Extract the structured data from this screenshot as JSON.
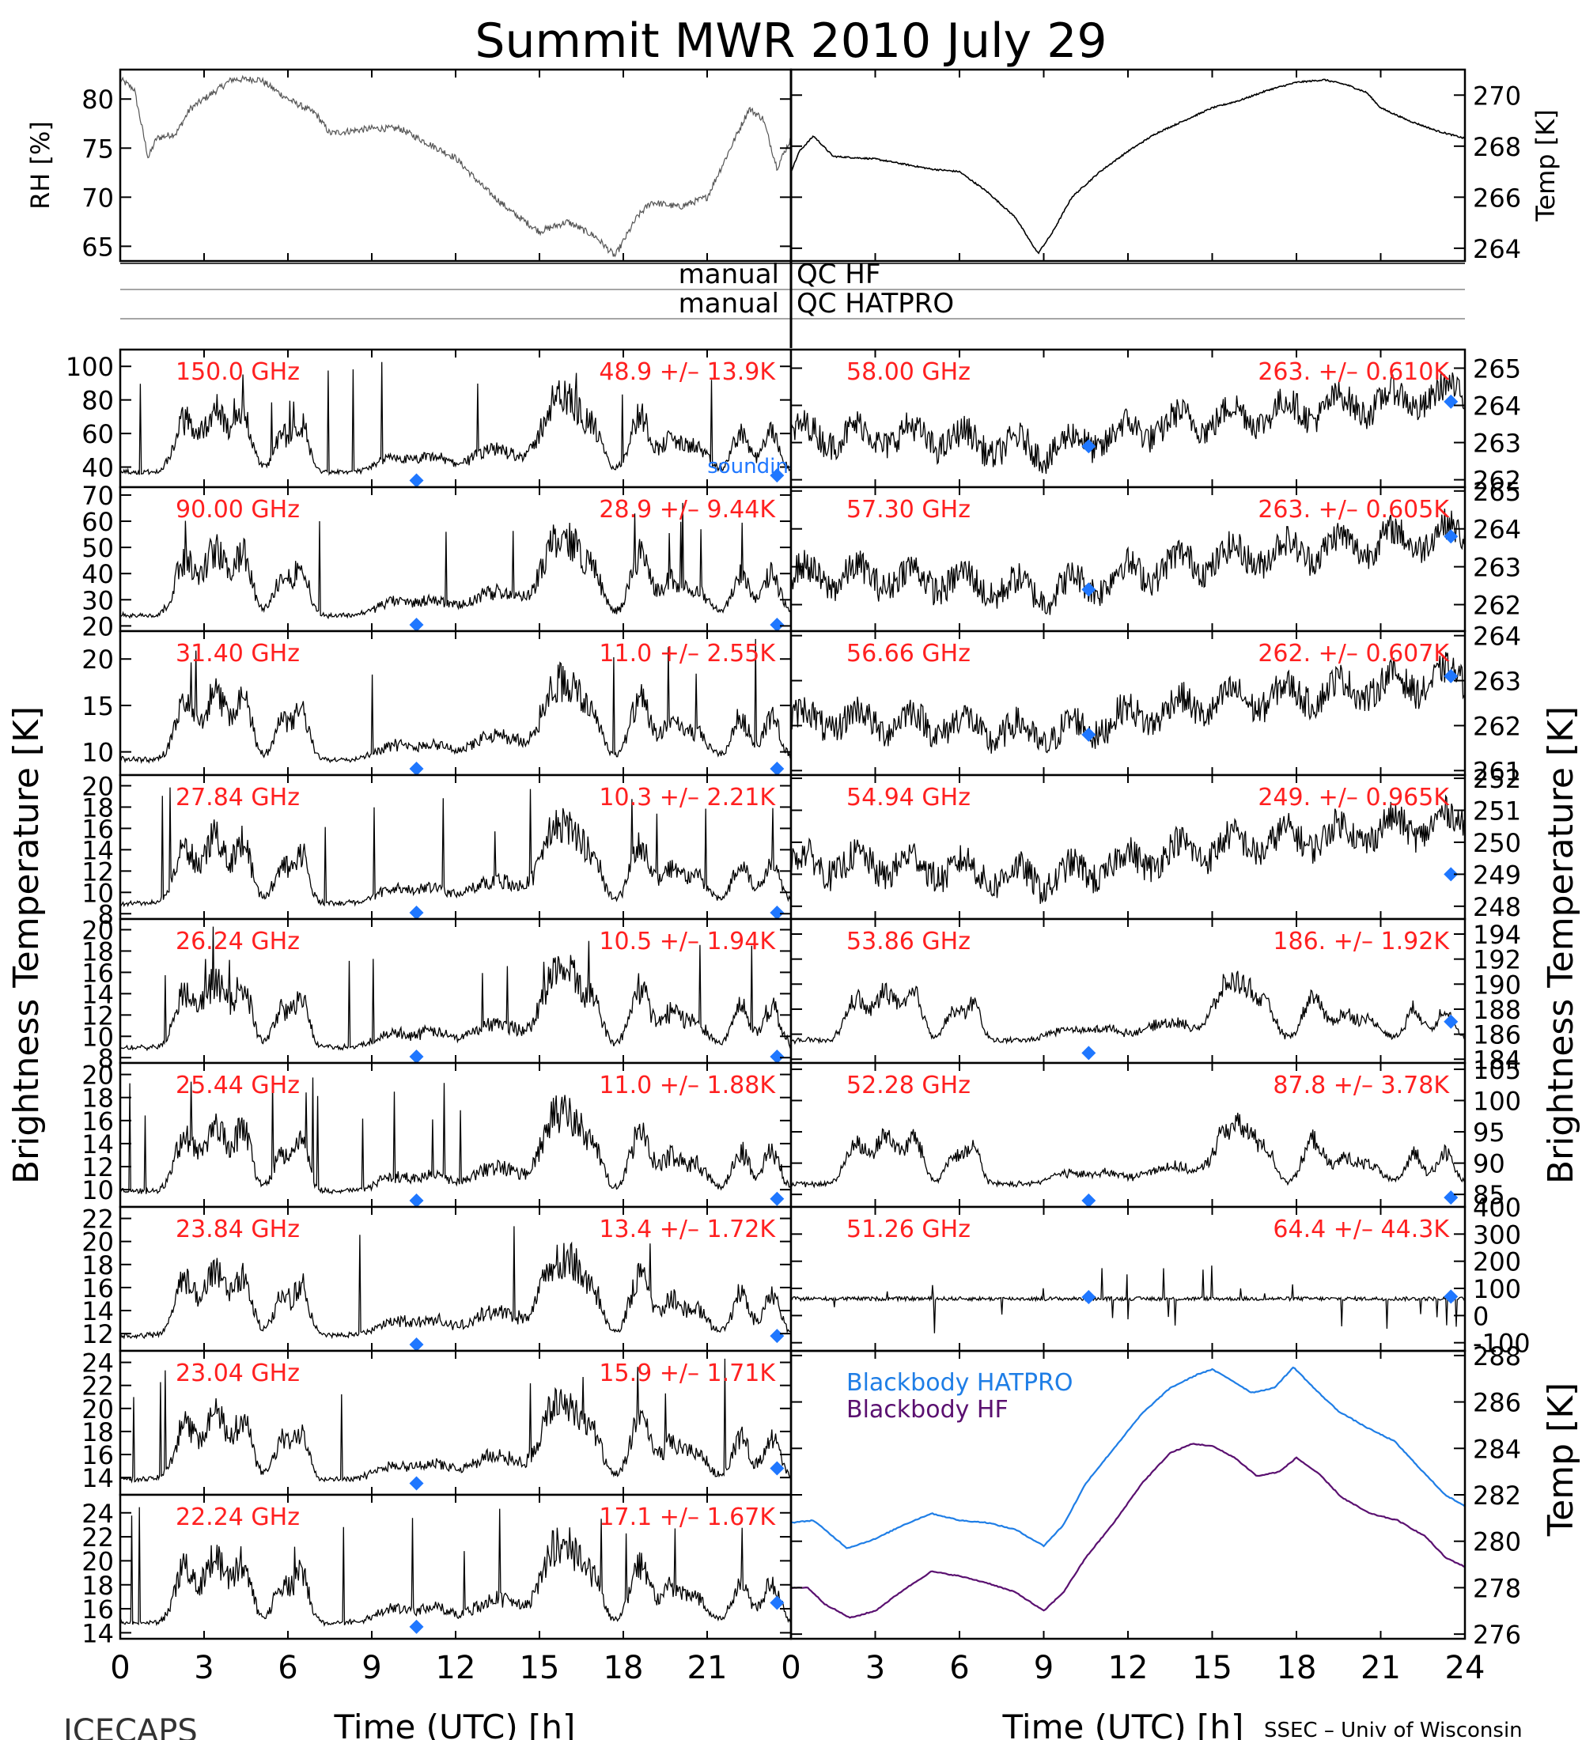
{
  "title": "Summit MWR 2010 July 29",
  "footer": {
    "left": "ICECAPS",
    "right": "SSEC – Univ of Wisconsin"
  },
  "qc_labels": [
    {
      "left": "manual",
      "right": "QC HF"
    },
    {
      "left": "manual",
      "right": "QC HATPRO"
    }
  ],
  "axis_labels": {
    "left_bt": "Brightness Temperature [K]",
    "right_bt": "Brightness Temperature [K]",
    "bb_temp": "Temp [K]",
    "xlabel": "Time (UTC) [h]"
  },
  "colors": {
    "annotation_red": "#ff2020",
    "marker_blue": "#1f77ff",
    "hatpro_blue": "#1f7ee6",
    "hf_purple": "#5a1070",
    "trace_black": "#000000"
  },
  "chart_data": [
    {
      "type": "line",
      "id": "top-left",
      "ylabel": "RH [%]",
      "ylim": [
        63.5,
        83
      ],
      "yticks": [
        65,
        70,
        75,
        80
      ],
      "xlim": [
        0,
        24
      ],
      "xticks": [
        0,
        3,
        6,
        9,
        12,
        15,
        18,
        21
      ],
      "series": [
        {
          "knots": [
            [
              0,
              82
            ],
            [
              0.5,
              81
            ],
            [
              1,
              74
            ],
            [
              1.3,
              76
            ],
            [
              2,
              76.5
            ],
            [
              2.5,
              79
            ],
            [
              3,
              80
            ],
            [
              4,
              82
            ],
            [
              5,
              82
            ],
            [
              6,
              80
            ],
            [
              7,
              78.5
            ],
            [
              7.5,
              76.5
            ],
            [
              9,
              77
            ],
            [
              10,
              77
            ],
            [
              11,
              75.5
            ],
            [
              12,
              74
            ],
            [
              13,
              71
            ],
            [
              14,
              68.5
            ],
            [
              15,
              66.5
            ],
            [
              16,
              67.5
            ],
            [
              17,
              66
            ],
            [
              17.7,
              64
            ],
            [
              18.5,
              68
            ],
            [
              19,
              69.5
            ],
            [
              20,
              69
            ],
            [
              21,
              70
            ],
            [
              22,
              76
            ],
            [
              22.5,
              79
            ],
            [
              23,
              78
            ],
            [
              23.5,
              73
            ],
            [
              24,
              76
            ]
          ]
        }
      ]
    },
    {
      "type": "line",
      "id": "top-right",
      "ylabel": "Temp [K]",
      "ylim": [
        263.5,
        271
      ],
      "yticks": [
        264,
        266,
        268,
        270
      ],
      "xlim": [
        0,
        24
      ],
      "series": [
        {
          "knots": [
            [
              0,
              267
            ],
            [
              0.3,
              267.8
            ],
            [
              0.8,
              268.4
            ],
            [
              1.5,
              267.6
            ],
            [
              3,
              267.5
            ],
            [
              4,
              267.3
            ],
            [
              5,
              267.1
            ],
            [
              6,
              267
            ],
            [
              7,
              266.2
            ],
            [
              8,
              265.2
            ],
            [
              8.5,
              264.3
            ],
            [
              8.8,
              263.8
            ],
            [
              9.3,
              264.6
            ],
            [
              10,
              266
            ],
            [
              11,
              267
            ],
            [
              12,
              267.8
            ],
            [
              13,
              268.5
            ],
            [
              14,
              269
            ],
            [
              15,
              269.5
            ],
            [
              16,
              269.8
            ],
            [
              17,
              270.2
            ],
            [
              18,
              270.5
            ],
            [
              19,
              270.6
            ],
            [
              19.8,
              270.4
            ],
            [
              20.5,
              270.1
            ],
            [
              21,
              269.5
            ],
            [
              22,
              269
            ],
            [
              23,
              268.6
            ],
            [
              24,
              268.3
            ]
          ]
        }
      ]
    },
    {
      "type": "line",
      "id": "bt-150.0",
      "freq_label": "150.0 GHz",
      "stat_label": "48.9 +/– 13.9K",
      "ylim": [
        28,
        110
      ],
      "yticks": [
        40,
        60,
        80,
        100
      ],
      "model_points": [
        [
          10.6,
          32
        ],
        [
          23.5,
          35
        ]
      ],
      "extra_label": "sounding (monoRTM)"
    },
    {
      "type": "line",
      "id": "bt-90.00",
      "freq_label": "90.00 GHz",
      "stat_label": "28.9 +/– 9.44K",
      "ylim": [
        18,
        73
      ],
      "yticks": [
        20,
        30,
        40,
        50,
        60,
        70
      ],
      "model_points": [
        [
          10.6,
          18
        ],
        [
          23.5,
          19
        ]
      ]
    },
    {
      "type": "line",
      "id": "bt-31.40",
      "freq_label": "31.40 GHz",
      "stat_label": "11.0 +/– 2.55K",
      "ylim": [
        7.5,
        23
      ],
      "yticks": [
        10,
        15,
        20
      ],
      "model_points": [
        [
          10.6,
          8
        ],
        [
          23.5,
          8
        ]
      ]
    },
    {
      "type": "line",
      "id": "bt-27.84",
      "freq_label": "27.84 GHz",
      "stat_label": "10.3 +/– 2.21K",
      "ylim": [
        7.5,
        21
      ],
      "yticks": [
        8,
        10,
        12,
        14,
        16,
        18,
        20
      ],
      "model_points": [
        [
          10.6,
          8
        ],
        [
          23.5,
          8
        ]
      ]
    },
    {
      "type": "line",
      "id": "bt-26.24",
      "freq_label": "26.24 GHz",
      "stat_label": "10.5 +/– 1.94K",
      "ylim": [
        7.5,
        21
      ],
      "yticks": [
        8,
        10,
        12,
        14,
        16,
        18,
        20
      ],
      "model_points": [
        [
          10.6,
          7.8
        ],
        [
          23.5,
          7.8
        ]
      ]
    },
    {
      "type": "line",
      "id": "bt-25.44",
      "freq_label": "25.44 GHz",
      "stat_label": "11.0 +/– 1.88K",
      "ylim": [
        8.5,
        21
      ],
      "yticks": [
        10,
        12,
        14,
        16,
        18,
        20
      ],
      "model_points": [
        [
          10.6,
          9
        ],
        [
          23.5,
          9.2
        ]
      ]
    },
    {
      "type": "line",
      "id": "bt-23.84",
      "freq_label": "23.84 GHz",
      "stat_label": "13.4 +/– 1.72K",
      "ylim": [
        10.5,
        23
      ],
      "yticks": [
        12,
        14,
        16,
        18,
        20,
        22
      ],
      "model_points": [
        [
          10.6,
          10.7
        ],
        [
          23.5,
          11.8
        ]
      ]
    },
    {
      "type": "line",
      "id": "bt-23.04",
      "freq_label": "23.04 GHz",
      "stat_label": "15.9 +/– 1.71K",
      "ylim": [
        12.5,
        25
      ],
      "yticks": [
        14,
        16,
        18,
        20,
        22,
        24
      ],
      "model_points": [
        [
          10.6,
          13.5
        ],
        [
          23.5,
          14.8
        ]
      ]
    },
    {
      "type": "line",
      "id": "bt-22.24",
      "freq_label": "22.24 GHz",
      "stat_label": "17.1 +/– 1.67K",
      "ylim": [
        13.5,
        25.5
      ],
      "yticks": [
        14,
        16,
        18,
        20,
        22,
        24
      ],
      "model_points": [
        [
          10.6,
          14.5
        ],
        [
          23.5,
          16.5
        ]
      ]
    },
    {
      "type": "line",
      "id": "bt-58.00",
      "freq_label": "58.00 GHz",
      "stat_label": "263. +/– 0.610K",
      "ylim": [
        261.8,
        265.5
      ],
      "yticks": [
        262,
        263,
        264,
        265
      ],
      "model_points": [
        [
          10.6,
          262.9
        ],
        [
          23.5,
          264.1
        ]
      ]
    },
    {
      "type": "line",
      "id": "bt-57.30",
      "freq_label": "57.30 GHz",
      "stat_label": "263. +/– 0.605K",
      "ylim": [
        261.3,
        265.1
      ],
      "yticks": [
        262,
        263,
        264,
        265
      ],
      "model_points": [
        [
          10.6,
          262.4
        ],
        [
          23.5,
          263.8
        ]
      ]
    },
    {
      "type": "line",
      "id": "bt-56.66",
      "freq_label": "56.66 GHz",
      "stat_label": "262. +/– 0.607K",
      "ylim": [
        260.9,
        264.1
      ],
      "yticks": [
        261,
        262,
        263,
        264
      ],
      "model_points": [
        [
          10.6,
          261.8
        ],
        [
          23.5,
          263.1
        ]
      ]
    },
    {
      "type": "line",
      "id": "bt-54.94",
      "freq_label": "54.94 GHz",
      "stat_label": "249. +/– 0.965K",
      "ylim": [
        247.6,
        252.1
      ],
      "yticks": [
        248,
        249,
        250,
        251,
        252
      ],
      "model_points": [
        [
          23.5,
          249
        ]
      ]
    },
    {
      "type": "line",
      "id": "bt-53.86",
      "freq_label": "53.86 GHz",
      "stat_label": "186. +/– 1.92K",
      "ylim": [
        183.7,
        195.2
      ],
      "yticks": [
        184,
        186,
        188,
        190,
        192,
        194
      ],
      "model_points": [
        [
          10.6,
          184.5
        ],
        [
          23.5,
          187
        ]
      ]
    },
    {
      "type": "line",
      "id": "bt-52.28",
      "freq_label": "52.28 GHz",
      "stat_label": "87.8 +/– 3.78K",
      "ylim": [
        83,
        106
      ],
      "yticks": [
        85,
        90,
        95,
        100,
        105
      ],
      "model_points": [
        [
          10.6,
          84
        ],
        [
          23.5,
          84.5
        ]
      ]
    },
    {
      "type": "line",
      "id": "bt-51.26",
      "freq_label": "51.26 GHz",
      "stat_label": "64.4 +/– 44.3K",
      "ylim": [
        -130,
        400
      ],
      "yticks": [
        -100,
        0,
        100,
        200,
        300,
        400
      ],
      "model_points": [
        [
          10.6,
          68
        ],
        [
          23.5,
          70
        ]
      ]
    },
    {
      "type": "line",
      "id": "blackbody",
      "ylim": [
        275.8,
        288.2
      ],
      "yticks": [
        276,
        278,
        280,
        282,
        284,
        286,
        288
      ],
      "xlim": [
        0,
        24
      ],
      "xticks": [
        0,
        3,
        6,
        9,
        12,
        15,
        18,
        21,
        24
      ],
      "series": [
        {
          "name": "Blackbody HATPRO",
          "knots": [
            [
              0,
              280.8
            ],
            [
              0.8,
              280.9
            ],
            [
              1.5,
              280.2
            ],
            [
              2,
              279.7
            ],
            [
              3,
              280.1
            ],
            [
              4,
              280.7
            ],
            [
              5,
              281.2
            ],
            [
              6,
              280.9
            ],
            [
              7,
              280.8
            ],
            [
              8,
              280.5
            ],
            [
              9,
              279.8
            ],
            [
              9.7,
              280.7
            ],
            [
              10.5,
              282.5
            ],
            [
              11.5,
              284
            ],
            [
              12.5,
              285.5
            ],
            [
              13.5,
              286.6
            ],
            [
              14.5,
              287.2
            ],
            [
              15,
              287.4
            ],
            [
              15.6,
              287
            ],
            [
              16.4,
              286.4
            ],
            [
              17.2,
              286.6
            ],
            [
              17.9,
              287.5
            ],
            [
              18.7,
              286.5
            ],
            [
              19.5,
              285.6
            ],
            [
              20.5,
              284.9
            ],
            [
              21.5,
              284.3
            ],
            [
              22.5,
              283
            ],
            [
              23.3,
              282
            ],
            [
              24,
              281.5
            ]
          ]
        },
        {
          "name": "Blackbody HF",
          "knots": [
            [
              0,
              278
            ],
            [
              0.6,
              278
            ],
            [
              1.2,
              277.3
            ],
            [
              2.1,
              276.7
            ],
            [
              3,
              277
            ],
            [
              4,
              277.9
            ],
            [
              5,
              278.7
            ],
            [
              6,
              278.5
            ],
            [
              7,
              278.2
            ],
            [
              8,
              277.8
            ],
            [
              9,
              277
            ],
            [
              9.7,
              277.8
            ],
            [
              10.5,
              279.3
            ],
            [
              11.5,
              280.8
            ],
            [
              12.5,
              282.5
            ],
            [
              13.5,
              283.8
            ],
            [
              14.3,
              284.2
            ],
            [
              15,
              284.1
            ],
            [
              15.8,
              283.6
            ],
            [
              16.6,
              282.8
            ],
            [
              17.4,
              283
            ],
            [
              18,
              283.6
            ],
            [
              18.8,
              282.9
            ],
            [
              19.6,
              281.9
            ],
            [
              20.6,
              281.2
            ],
            [
              21.6,
              280.9
            ],
            [
              22.6,
              280.2
            ],
            [
              23.3,
              279.3
            ],
            [
              24,
              278.9
            ]
          ]
        }
      ]
    }
  ]
}
